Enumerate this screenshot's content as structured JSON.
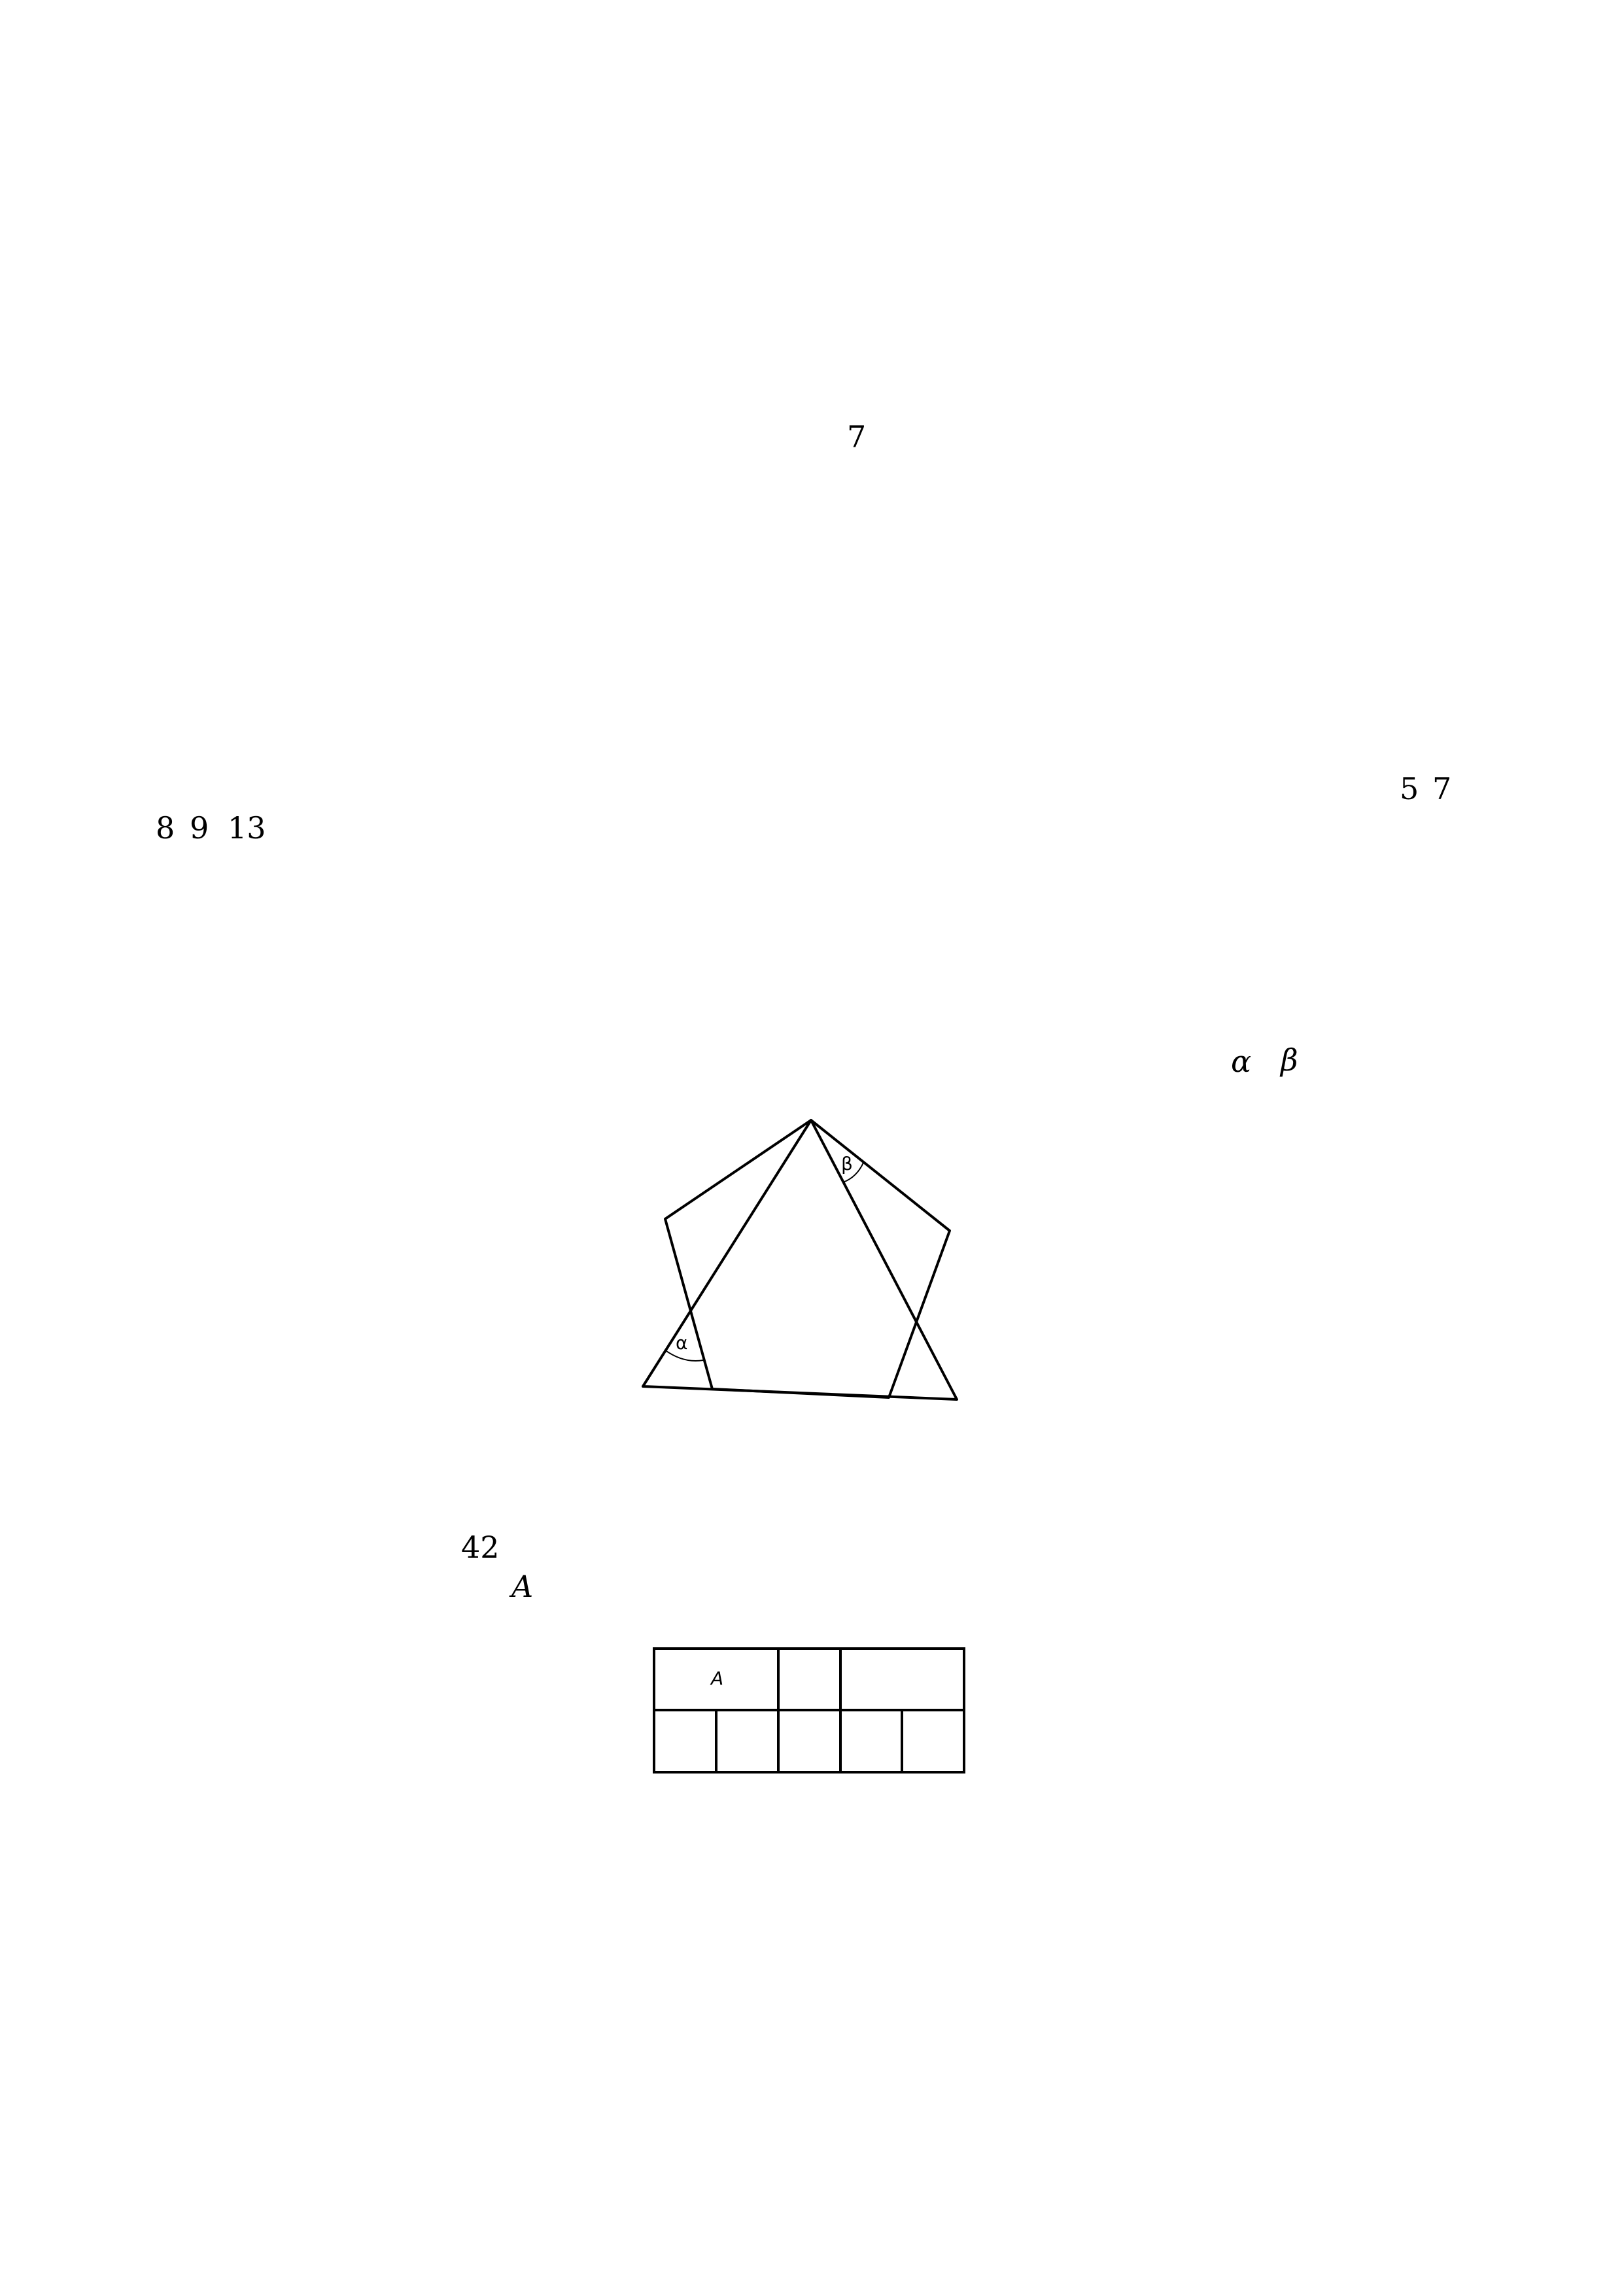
{
  "problem_number": "7",
  "numbers_line_1": [
    "5",
    "7"
  ],
  "numbers_line_2": [
    "8",
    "9",
    "13"
  ],
  "angle_symbols": [
    "α",
    "β"
  ],
  "figure_1": {
    "label_alpha": "α",
    "label_beta": "β"
  },
  "value_42": "42",
  "variable_A": "A",
  "figure_2": {
    "label_A": "A"
  }
}
